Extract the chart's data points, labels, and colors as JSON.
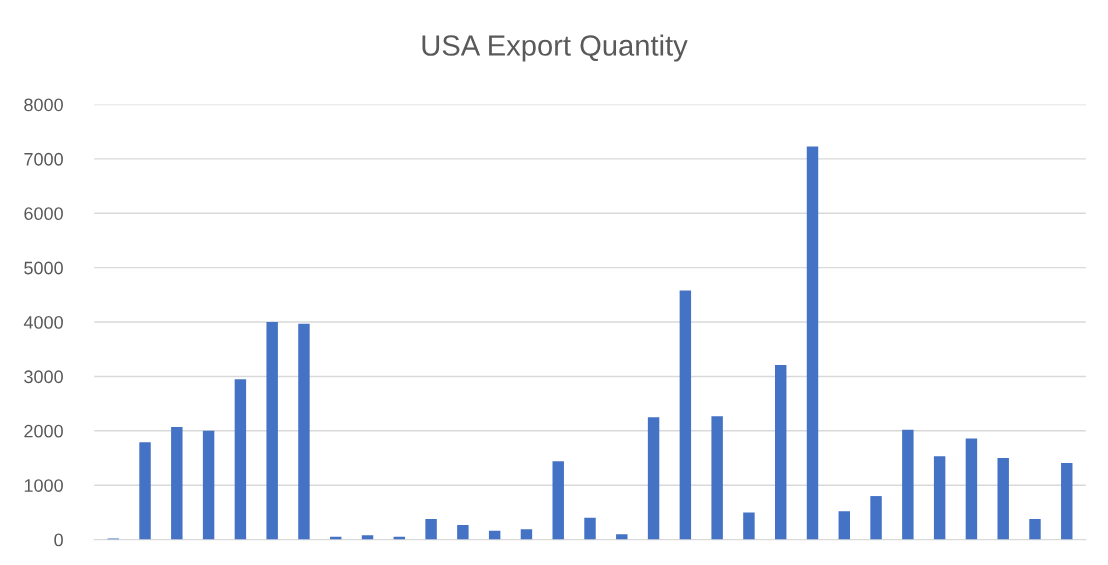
{
  "chart_data": {
    "type": "bar",
    "title": "USA Export Quantity",
    "categories": [
      null,
      null,
      null,
      null,
      null,
      null,
      null,
      null,
      null,
      null,
      null,
      null,
      null,
      null,
      null,
      null,
      null,
      null,
      null,
      null,
      null,
      null,
      null,
      null,
      null,
      null,
      null,
      null,
      null,
      null,
      null
    ],
    "values": [
      20,
      1790,
      2070,
      2000,
      2950,
      4000,
      3970,
      50,
      80,
      50,
      380,
      270,
      160,
      190,
      1440,
      400,
      100,
      2250,
      4580,
      2270,
      500,
      3210,
      7230,
      520,
      800,
      2020,
      1530,
      1860,
      1500,
      380,
      1410
    ],
    "color": "#4472c4",
    "ylim": [
      0,
      8000
    ],
    "yticks": [
      0,
      1000,
      2000,
      3000,
      4000,
      5000,
      6000,
      7000,
      8000
    ],
    "grid": "y",
    "legend": false
  }
}
